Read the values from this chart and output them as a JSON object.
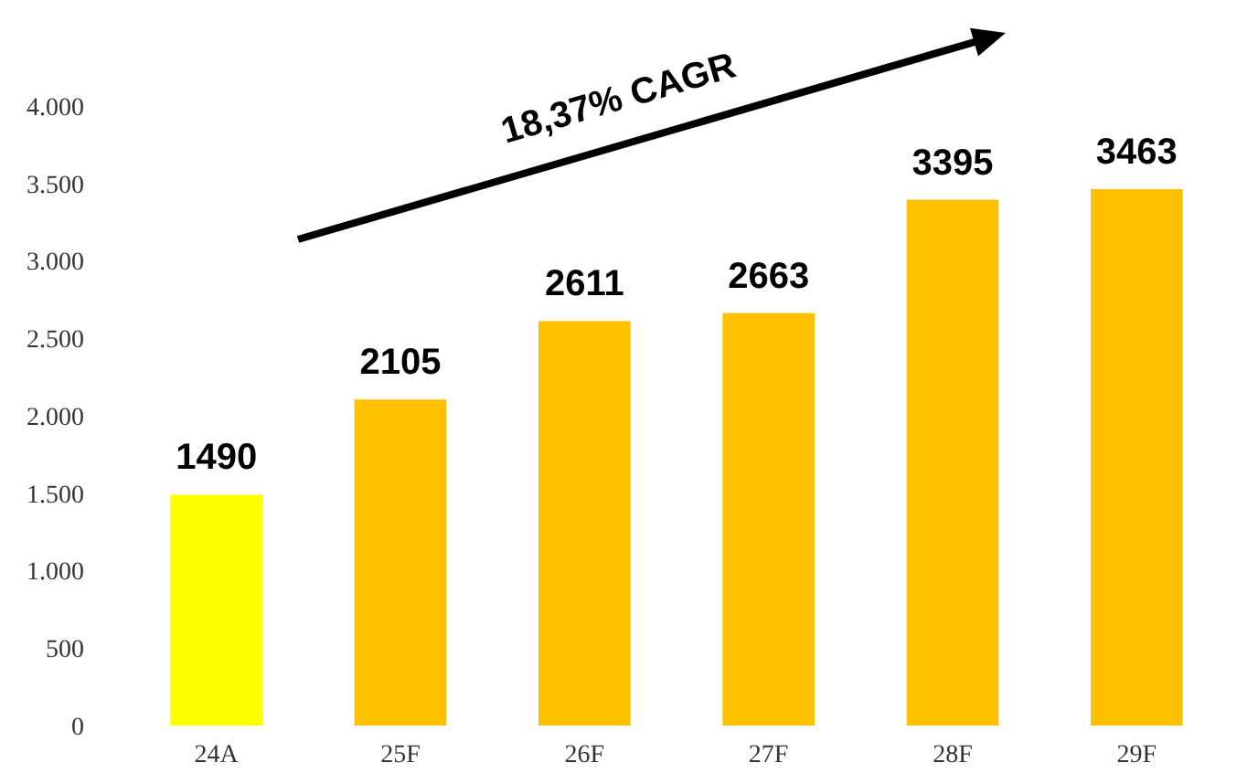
{
  "chart_data": {
    "type": "bar",
    "categories": [
      "24A",
      "25F",
      "26F",
      "27F",
      "28F",
      "29F"
    ],
    "values": [
      1490,
      2105,
      2611,
      2663,
      3395,
      3463
    ],
    "colors": [
      "#ffff00",
      "#ffc000",
      "#ffc000",
      "#ffc000",
      "#ffc000",
      "#ffc000"
    ],
    "ylim": [
      0,
      4000
    ],
    "yticks": [
      {
        "value": 0,
        "label": "0"
      },
      {
        "value": 500,
        "label": "500"
      },
      {
        "value": 1000,
        "label": "1.000"
      },
      {
        "value": 1500,
        "label": "1.500"
      },
      {
        "value": 2000,
        "label": "2.000"
      },
      {
        "value": 2500,
        "label": "2.500"
      },
      {
        "value": 3000,
        "label": "3.000"
      },
      {
        "value": 3500,
        "label": "3.500"
      },
      {
        "value": 4000,
        "label": "4.000"
      }
    ],
    "data_labels": true,
    "annotations": [
      "18,37% CAGR"
    ]
  }
}
